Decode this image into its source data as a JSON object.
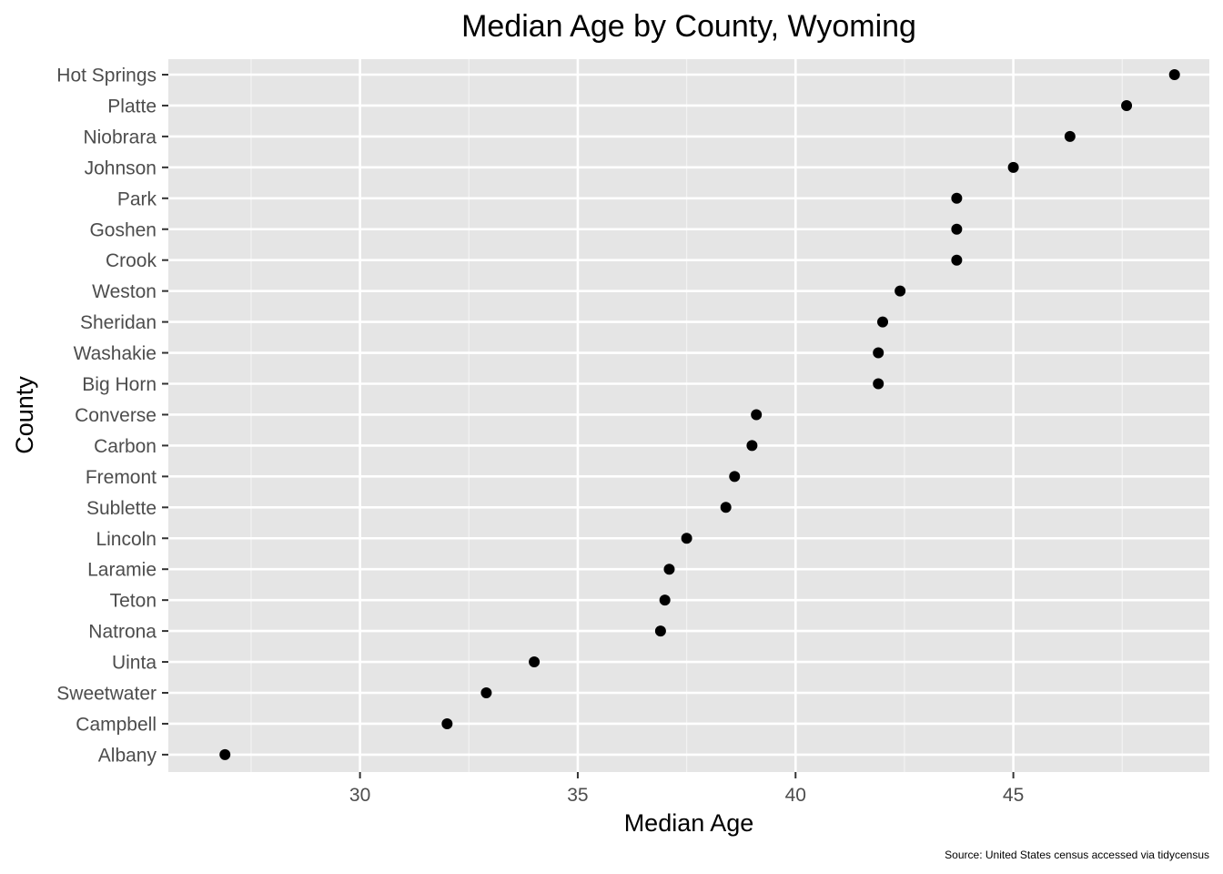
{
  "chart_data": {
    "type": "scatter",
    "title": "Median Age by County, Wyoming",
    "xlabel": "Median Age",
    "ylabel": "County",
    "caption": "Source: United States census accessed via tidycensus",
    "xlim": [
      25.6,
      49.5
    ],
    "xticks": [
      30,
      35,
      40,
      45
    ],
    "grid": true,
    "legend": "none",
    "point_color": "#000000",
    "panel_color": "#e5e5e5",
    "grid_color": "#ffffff",
    "categories": [
      "Albany",
      "Campbell",
      "Sweetwater",
      "Uinta",
      "Natrona",
      "Teton",
      "Laramie",
      "Lincoln",
      "Sublette",
      "Fremont",
      "Carbon",
      "Converse",
      "Big Horn",
      "Washakie",
      "Sheridan",
      "Weston",
      "Crook",
      "Goshen",
      "Park",
      "Johnson",
      "Niobrara",
      "Platte",
      "Hot Springs"
    ],
    "values": [
      26.9,
      32.0,
      32.9,
      34.0,
      36.9,
      37.0,
      37.1,
      37.5,
      38.4,
      38.6,
      39.0,
      39.1,
      41.9,
      41.9,
      42.0,
      42.4,
      43.7,
      43.7,
      43.7,
      45.0,
      46.3,
      47.6,
      48.7
    ]
  }
}
